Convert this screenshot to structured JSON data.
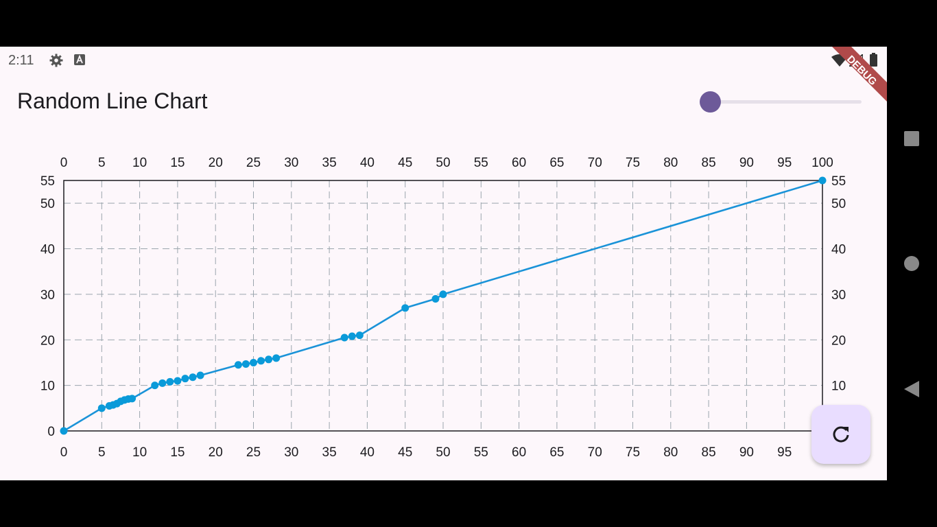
{
  "status_bar": {
    "time": "2:11"
  },
  "debug_banner": {
    "text": "DEBUG"
  },
  "app": {
    "title": "Random Line Chart"
  },
  "slider": {
    "value": 0.0
  },
  "colors": {
    "background": "#fdf7fb",
    "line": "#1a93d8",
    "point": "#0a9ad9",
    "grid": "#9aa5ad",
    "fab_background": "#e9ddff",
    "slider_thumb": "#6d5a99",
    "debug_banner": "#b04a4a"
  },
  "fab": {
    "icon": "refresh-icon"
  },
  "nav": {
    "icons": [
      "square-icon",
      "circle-icon",
      "back-triangle-icon"
    ]
  },
  "chart_data": {
    "type": "line",
    "title": "",
    "xlabel": "",
    "ylabel": "",
    "xlim": [
      0,
      100
    ],
    "ylim": [
      0,
      55
    ],
    "x_ticks": [
      0,
      5,
      10,
      15,
      20,
      25,
      30,
      35,
      40,
      45,
      50,
      55,
      60,
      65,
      70,
      75,
      80,
      85,
      90,
      95,
      100
    ],
    "x_ticks_bottom": [
      0,
      5,
      10,
      15,
      20,
      25,
      30,
      35,
      40,
      45,
      50,
      55,
      60,
      65,
      70,
      75,
      80,
      85,
      90,
      95
    ],
    "y_ticks": [
      0,
      10,
      20,
      30,
      40,
      50,
      55
    ],
    "grid": true,
    "series": [
      {
        "points": [
          [
            0,
            0
          ],
          [
            5,
            5
          ],
          [
            6,
            5.5
          ],
          [
            6.5,
            5.7
          ],
          [
            7,
            6
          ],
          [
            7.5,
            6.5
          ],
          [
            8,
            6.8
          ],
          [
            8.5,
            7
          ],
          [
            9,
            7.1
          ],
          [
            12,
            10
          ],
          [
            13,
            10.5
          ],
          [
            14,
            10.8
          ],
          [
            15,
            11
          ],
          [
            16,
            11.5
          ],
          [
            17,
            11.8
          ],
          [
            18,
            12.2
          ],
          [
            23,
            14.5
          ],
          [
            24,
            14.7
          ],
          [
            25,
            15
          ],
          [
            26,
            15.4
          ],
          [
            27,
            15.7
          ],
          [
            28,
            16
          ],
          [
            37,
            20.5
          ],
          [
            38,
            20.8
          ],
          [
            39,
            21
          ],
          [
            45,
            27
          ],
          [
            49,
            29
          ],
          [
            50,
            30
          ],
          [
            100,
            55
          ]
        ]
      }
    ]
  }
}
